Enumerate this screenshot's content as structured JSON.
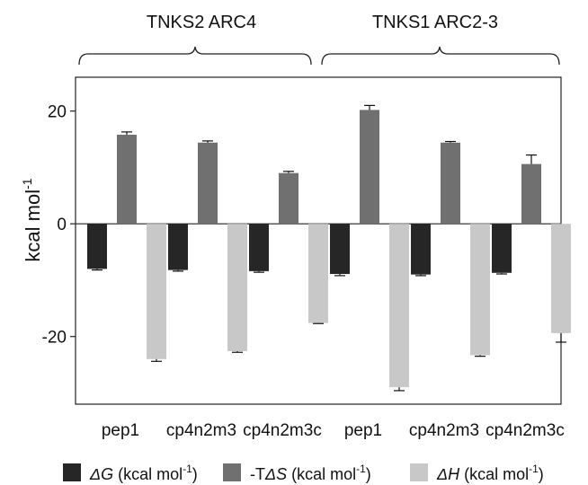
{
  "chart_data": {
    "type": "bar",
    "group_labels": [
      "TNKS2 ARC4",
      "TNKS1 ARC2-3"
    ],
    "categories": [
      "pep1",
      "cp4n2m3",
      "cp4n2m3c",
      "pep1",
      "cp4n2m3",
      "cp4n2m3c"
    ],
    "ylabel": {
      "text": "kcal mol",
      "sup": "-1"
    },
    "ylim": [
      -32,
      26
    ],
    "yticks": [
      20,
      0,
      -20
    ],
    "grid": false,
    "legend_position": "bottom",
    "series": [
      {
        "name": {
          "pre": "",
          "sym": "ΔG",
          "post": " (kcal mol",
          "sup": "-1",
          "end": ")"
        },
        "color": "#262626",
        "values": [
          -8.0,
          -8.2,
          -8.4,
          -8.9,
          -9.0,
          -8.7
        ],
        "errors": [
          0.2,
          0.2,
          0.2,
          0.3,
          0.2,
          0.2
        ]
      },
      {
        "name": {
          "pre": "-T",
          "sym": "ΔS",
          "post": " (kcal mol",
          "sup": "-1",
          "end": ")"
        },
        "color": "#707070",
        "values": [
          15.8,
          14.4,
          9.0,
          20.2,
          14.4,
          10.6
        ],
        "errors": [
          0.5,
          0.3,
          0.3,
          0.8,
          0.2,
          1.6
        ]
      },
      {
        "name": {
          "pre": "",
          "sym": "ΔH",
          "post": " (kcal mol",
          "sup": "-1",
          "end": ")"
        },
        "color": "#c8c8c8",
        "values": [
          -24.0,
          -22.6,
          -17.6,
          -29.0,
          -23.3,
          -19.4
        ],
        "errors": [
          0.4,
          0.2,
          0.1,
          0.6,
          0.2,
          1.6
        ]
      }
    ]
  }
}
